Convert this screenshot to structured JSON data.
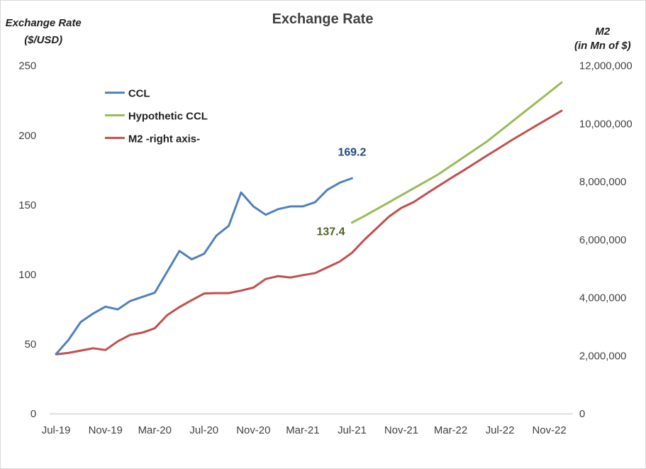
{
  "chart_data": {
    "type": "line",
    "title": "Exchange Rate",
    "y_left_label": [
      "Exchange Rate",
      "($/USD)"
    ],
    "y_right_label": [
      "M2",
      "(in Mn of $)"
    ],
    "y_left_range": [
      0,
      250
    ],
    "y_left_ticks": [
      "0",
      "50",
      "100",
      "150",
      "200",
      "250"
    ],
    "y_right_range": [
      0,
      12000000
    ],
    "y_right_ticks": [
      "0",
      "2,000,000",
      "4,000,000",
      "6,000,000",
      "8,000,000",
      "10,000,000",
      "12,000,000"
    ],
    "x_tick_labels": [
      {
        "index": 0,
        "label": "Jul-19"
      },
      {
        "index": 4,
        "label": "Nov-19"
      },
      {
        "index": 8,
        "label": "Mar-20"
      },
      {
        "index": 12,
        "label": "Jul-20"
      },
      {
        "index": 16,
        "label": "Nov-20"
      },
      {
        "index": 20,
        "label": "Mar-21"
      },
      {
        "index": 24,
        "label": "Jul-21"
      },
      {
        "index": 28,
        "label": "Nov-21"
      },
      {
        "index": 32,
        "label": "Mar-22"
      },
      {
        "index": 36,
        "label": "Jul-22"
      },
      {
        "index": 40,
        "label": "Nov-22"
      }
    ],
    "x_count": 42,
    "grid": false,
    "legend_position": "top-left",
    "series": [
      {
        "name": "CCL",
        "axis": "left",
        "color": "#4f81bd",
        "x": [
          0,
          1,
          2,
          3,
          4,
          5,
          6,
          7,
          8,
          9,
          10,
          11,
          12,
          13,
          14,
          15,
          16,
          17,
          18,
          19,
          20,
          21,
          22,
          23,
          24
        ],
        "values": [
          43,
          53,
          66,
          72,
          77,
          75,
          81,
          84,
          87,
          102,
          117,
          111,
          115,
          128,
          135,
          159,
          149,
          143,
          147,
          149,
          149,
          152,
          161,
          166,
          169.2
        ],
        "end_label": "169.2",
        "label_color": "#1f497d"
      },
      {
        "name": "Hypothetic CCL",
        "axis": "left",
        "color": "#9bbb59",
        "x": [
          24,
          25,
          26,
          27,
          28,
          29,
          30,
          31,
          32,
          33,
          34,
          35,
          36,
          37,
          38,
          39,
          40,
          41
        ],
        "values": [
          137.4,
          142,
          147,
          152,
          157,
          162,
          167,
          172,
          178,
          184,
          190,
          196,
          203,
          210,
          217,
          224,
          231,
          238
        ],
        "start_label": "137.4",
        "label_color": "#4f6228"
      },
      {
        "name": "M2 -right axis-",
        "axis": "right",
        "color": "#c0504d",
        "x": [
          0,
          1,
          2,
          3,
          4,
          5,
          6,
          7,
          8,
          9,
          10,
          11,
          12,
          13,
          14,
          15,
          16,
          17,
          18,
          19,
          20,
          21,
          22,
          23,
          24,
          25,
          26,
          27,
          28,
          29,
          30,
          31,
          32,
          33,
          34,
          35,
          36,
          37,
          38,
          39,
          40,
          41
        ],
        "values": [
          2050000,
          2100000,
          2180000,
          2260000,
          2200000,
          2500000,
          2720000,
          2800000,
          2950000,
          3400000,
          3680000,
          3920000,
          4150000,
          4160000,
          4160000,
          4250000,
          4350000,
          4650000,
          4750000,
          4700000,
          4780000,
          4850000,
          5050000,
          5250000,
          5550000,
          6000000,
          6400000,
          6800000,
          7100000,
          7300000,
          7580000,
          7850000,
          8120000,
          8380000,
          8650000,
          8920000,
          9180000,
          9450000,
          9700000,
          9950000,
          10200000,
          10450000
        ]
      }
    ]
  }
}
